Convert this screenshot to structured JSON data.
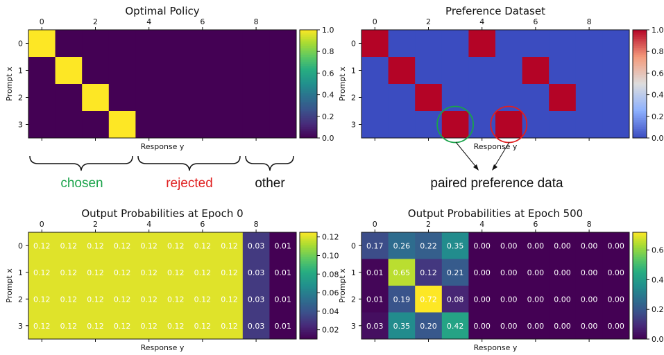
{
  "chart_data": [
    {
      "type": "heatmap",
      "title": "Optimal Policy",
      "xlabel": "Response y",
      "ylabel": "Prompt x",
      "x_ticks": [
        0,
        2,
        4,
        6,
        8
      ],
      "y_ticks": [
        0,
        1,
        2,
        3
      ],
      "colormap": "viridis",
      "colorbar_ticks": [
        "0.0",
        "0.2",
        "0.4",
        "0.6",
        "0.8",
        "1.0"
      ],
      "vmin": 0,
      "vmax": 1,
      "values": [
        [
          1,
          0,
          0,
          0,
          0,
          0,
          0,
          0,
          0,
          0
        ],
        [
          0,
          1,
          0,
          0,
          0,
          0,
          0,
          0,
          0,
          0
        ],
        [
          0,
          0,
          1,
          0,
          0,
          0,
          0,
          0,
          0,
          0
        ],
        [
          0,
          0,
          0,
          1,
          0,
          0,
          0,
          0,
          0,
          0
        ]
      ]
    },
    {
      "type": "heatmap",
      "title": "Preference Dataset",
      "xlabel": "Response y",
      "ylabel": "Prompt x",
      "x_ticks": [
        0,
        2,
        4,
        6,
        8
      ],
      "y_ticks": [
        0,
        1,
        2,
        3
      ],
      "colormap": "coolwarm",
      "colorbar_ticks": [
        "0.0",
        "0.2",
        "0.4",
        "0.6",
        "0.8",
        "1.0"
      ],
      "vmin": 0,
      "vmax": 1,
      "values": [
        [
          1,
          0,
          0,
          0,
          1,
          0,
          0,
          0,
          0,
          0
        ],
        [
          0,
          1,
          0,
          0,
          0,
          0,
          1,
          0,
          0,
          0
        ],
        [
          0,
          0,
          1,
          0,
          0,
          0,
          0,
          1,
          0,
          0
        ],
        [
          0,
          0,
          0,
          1,
          0,
          1,
          0,
          0,
          0,
          0
        ]
      ]
    },
    {
      "type": "heatmap",
      "title": "Output Probabilities at Epoch 0",
      "xlabel": "Response y",
      "ylabel": "Prompt x",
      "x_ticks": [
        0,
        2,
        4,
        6,
        8
      ],
      "y_ticks": [
        0,
        1,
        2,
        3
      ],
      "colormap": "viridis",
      "colorbar_ticks": [
        "0.02",
        "0.04",
        "0.06",
        "0.08",
        "0.10",
        "0.12"
      ],
      "vmin": 0.01,
      "vmax": 0.125,
      "values": [
        [
          0.12,
          0.12,
          0.12,
          0.12,
          0.12,
          0.12,
          0.12,
          0.12,
          0.03,
          0.01
        ],
        [
          0.12,
          0.12,
          0.12,
          0.12,
          0.12,
          0.12,
          0.12,
          0.12,
          0.03,
          0.01
        ],
        [
          0.12,
          0.12,
          0.12,
          0.12,
          0.12,
          0.12,
          0.12,
          0.12,
          0.03,
          0.01
        ],
        [
          0.12,
          0.12,
          0.12,
          0.12,
          0.12,
          0.12,
          0.12,
          0.12,
          0.03,
          0.01
        ]
      ],
      "labels": [
        [
          "0.12",
          "0.12",
          "0.12",
          "0.12",
          "0.12",
          "0.12",
          "0.12",
          "0.12",
          "0.03",
          "0.01"
        ],
        [
          "0.12",
          "0.12",
          "0.12",
          "0.12",
          "0.12",
          "0.12",
          "0.12",
          "0.12",
          "0.03",
          "0.01"
        ],
        [
          "0.12",
          "0.12",
          "0.12",
          "0.12",
          "0.12",
          "0.12",
          "0.12",
          "0.12",
          "0.03",
          "0.01"
        ],
        [
          "0.12",
          "0.12",
          "0.12",
          "0.12",
          "0.12",
          "0.12",
          "0.12",
          "0.12",
          "0.03",
          "0.01"
        ]
      ]
    },
    {
      "type": "heatmap",
      "title": "Output Probabilities at Epoch 500",
      "xlabel": "Response y",
      "ylabel": "Prompt x",
      "x_ticks": [
        0,
        2,
        4,
        6,
        8
      ],
      "y_ticks": [
        0,
        1,
        2,
        3
      ],
      "colormap": "viridis",
      "colorbar_ticks": [
        "0.0",
        "0.2",
        "0.4",
        "0.6"
      ],
      "vmin": 0,
      "vmax": 0.72,
      "values": [
        [
          0.17,
          0.26,
          0.22,
          0.35,
          0.0,
          0.0,
          0.0,
          0.0,
          0.0,
          0.0
        ],
        [
          0.01,
          0.65,
          0.12,
          0.21,
          0.0,
          0.0,
          0.0,
          0.0,
          0.0,
          0.0
        ],
        [
          0.01,
          0.19,
          0.72,
          0.08,
          0.0,
          0.0,
          0.0,
          0.0,
          0.0,
          0.0
        ],
        [
          0.03,
          0.35,
          0.2,
          0.42,
          0.0,
          0.0,
          0.0,
          0.0,
          0.0,
          0.0
        ]
      ],
      "labels": [
        [
          "0.17",
          "0.26",
          "0.22",
          "0.35",
          "0.00",
          "0.00",
          "0.00",
          "0.00",
          "0.00",
          "0.00"
        ],
        [
          "0.01",
          "0.65",
          "0.12",
          "0.21",
          "0.00",
          "0.00",
          "0.00",
          "0.00",
          "0.00",
          "0.00"
        ],
        [
          "0.01",
          "0.19",
          "0.72",
          "0.08",
          "0.00",
          "0.00",
          "0.00",
          "0.00",
          "0.00",
          "0.00"
        ],
        [
          "0.03",
          "0.35",
          "0.20",
          "0.42",
          "0.00",
          "0.00",
          "0.00",
          "0.00",
          "0.00",
          "0.00"
        ]
      ]
    }
  ],
  "annotations": {
    "chosen": {
      "text": "chosen",
      "color": "#1aa34a"
    },
    "rejected": {
      "text": "rejected",
      "color": "#e02020"
    },
    "other": {
      "text": "other",
      "color": "#111111"
    },
    "paired": {
      "text": "paired preference data",
      "color": "#111111"
    },
    "circle_colors": [
      "#1aa34a",
      "#e02020"
    ]
  }
}
